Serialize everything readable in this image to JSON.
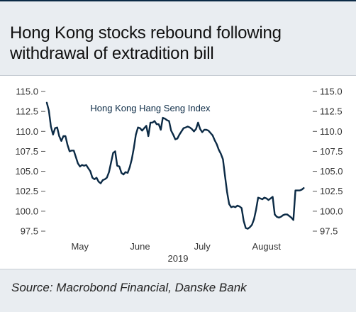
{
  "title": "Hong Kong stocks rebound following withdrawal of extradition bill",
  "source": "Source: Macrobond Financial, Danske Bank",
  "colors": {
    "line": "#0b2a45",
    "background": "#e9edf1",
    "panel": "#ffffff"
  },
  "chart_data": {
    "type": "line",
    "title": "",
    "xlabel": "2019",
    "ylabel": "",
    "ylim": [
      97.5,
      115.0
    ],
    "yticks": [
      "115.0",
      "112.5",
      "110.0",
      "107.5",
      "105.0",
      "102.5",
      "100.0",
      "97.5"
    ],
    "ytick_values": [
      115.0,
      112.5,
      110.0,
      107.5,
      105.0,
      102.5,
      100.0,
      97.5
    ],
    "grid": false,
    "month_labels": [
      {
        "label": "May",
        "day": 8
      },
      {
        "label": "June",
        "day": 37
      },
      {
        "label": "July",
        "day": 67
      },
      {
        "label": "August",
        "day": 98
      }
    ],
    "xlim_days": [
      -8,
      120
    ],
    "series": [
      {
        "name": "Hong Kong Hang Seng Index",
        "day": [
          -8,
          -7,
          -6,
          -5,
          -4,
          -3,
          -2,
          -1,
          0,
          1,
          2,
          3,
          4,
          5,
          6,
          7,
          8,
          9,
          10,
          11,
          12,
          13,
          14,
          15,
          16,
          17,
          18,
          19,
          20,
          21,
          22,
          23,
          24,
          25,
          26,
          27,
          28,
          29,
          30,
          31,
          32,
          33,
          34,
          35,
          36,
          37,
          38,
          39,
          40,
          41,
          42,
          43,
          44,
          45,
          46,
          47,
          48,
          49,
          50,
          51,
          52,
          53,
          54,
          55,
          56,
          57,
          58,
          59,
          60,
          61,
          62,
          63,
          64,
          65,
          66,
          67,
          68,
          69,
          70,
          71,
          72,
          73,
          74,
          75,
          76,
          77,
          78,
          79,
          80,
          81,
          82,
          83,
          84,
          85,
          86,
          87,
          88,
          89,
          90,
          91,
          92,
          93,
          94,
          95,
          96,
          97,
          98,
          99,
          100,
          101,
          102,
          103,
          104,
          105,
          106,
          107,
          108,
          109,
          110,
          111,
          112,
          113,
          114,
          115,
          116,
          117,
          118,
          119,
          120
        ],
        "values": [
          113.6,
          112.6,
          110.6,
          109.6,
          110.4,
          110.5,
          109.4,
          108.8,
          109.4,
          109.4,
          108.3,
          107.5,
          107.6,
          107.6,
          106.8,
          106.0,
          105.6,
          105.8,
          105.7,
          105.8,
          105.4,
          105.0,
          104.2,
          104.0,
          104.2,
          103.7,
          103.5,
          103.9,
          104.0,
          104.2,
          104.9,
          106.1,
          107.3,
          107.5,
          105.7,
          105.6,
          104.8,
          104.6,
          104.9,
          104.8,
          105.5,
          106.5,
          107.9,
          109.6,
          110.5,
          110.4,
          110.1,
          110.4,
          110.7,
          109.4,
          111.1,
          111.1,
          111.3,
          110.9,
          110.9,
          110.2,
          111.7,
          111.6,
          111.4,
          111.3,
          110.1,
          109.6,
          109.0,
          109.1,
          109.6,
          110.0,
          110.4,
          110.5,
          110.6,
          110.5,
          110.3,
          110.0,
          110.3,
          111.1,
          110.3,
          109.9,
          110.2,
          110.2,
          110.1,
          109.8,
          109.5,
          108.9,
          108.4,
          107.7,
          107.2,
          106.5,
          104.4,
          102.4,
          100.9,
          100.5,
          100.6,
          100.5,
          100.7,
          100.6,
          100.4,
          98.8,
          97.9,
          97.8,
          98.0,
          98.3,
          99.0,
          100.2,
          101.7,
          101.6,
          101.5,
          101.7,
          101.6,
          101.4,
          101.6,
          101.8,
          99.6,
          99.3,
          99.2,
          99.3,
          99.5,
          99.6,
          99.6,
          99.4,
          99.2,
          98.9,
          102.6,
          102.6,
          102.6,
          102.7,
          102.9
        ]
      }
    ]
  }
}
